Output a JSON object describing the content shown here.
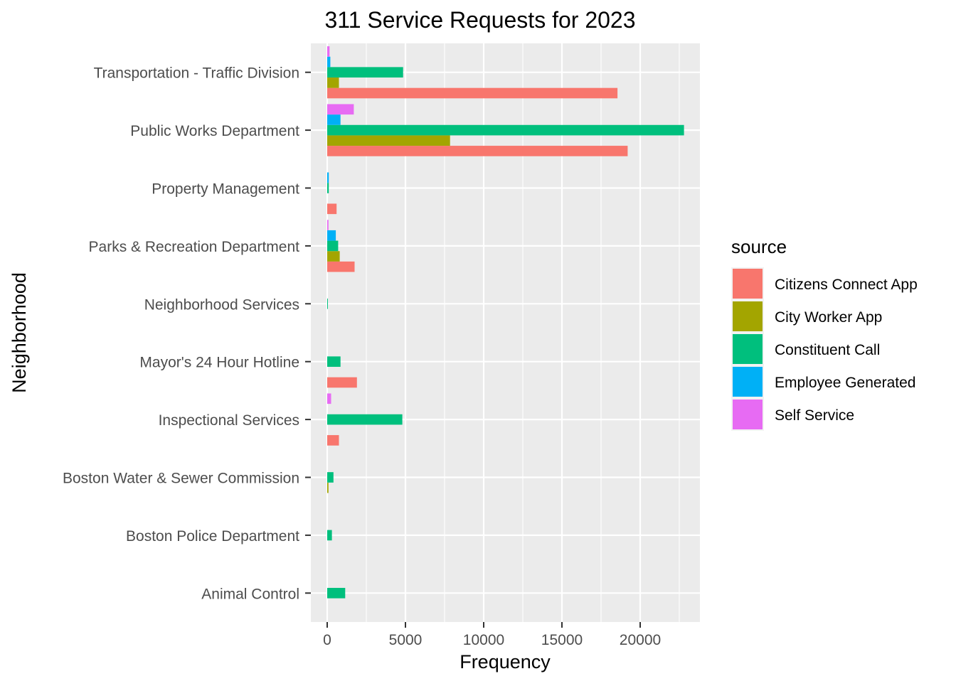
{
  "chart_data": {
    "type": "bar",
    "orientation": "horizontal",
    "title": "311 Service Requests for 2023",
    "xlabel": "Frequency",
    "ylabel": "Neighborhood",
    "xlim": [
      -1100,
      23800
    ],
    "xticks": [
      0,
      5000,
      10000,
      15000,
      20000
    ],
    "xtick_labels": [
      "0",
      "5000",
      "10000",
      "15000",
      "20000"
    ],
    "grid": true,
    "legend": {
      "title": "source",
      "position": "right"
    },
    "categories": [
      "Animal Control",
      "Boston Police Department",
      "Boston Water & Sewer Commission",
      "Inspectional Services",
      "Mayor's 24 Hour Hotline",
      "Neighborhood Services",
      "Parks & Recreation Department",
      "Property Management",
      "Public Works Department",
      "Transportation - Traffic Division"
    ],
    "series": [
      {
        "name": "Citizens Connect App",
        "color": "#F8766D",
        "values": [
          0,
          0,
          0,
          750,
          1900,
          0,
          1750,
          600,
          19200,
          18550
        ]
      },
      {
        "name": "City Worker App",
        "color": "#A3A500",
        "values": [
          0,
          0,
          80,
          0,
          0,
          0,
          800,
          0,
          7850,
          750
        ]
      },
      {
        "name": "Constituent Call",
        "color": "#00BF7D",
        "values": [
          1150,
          300,
          400,
          4800,
          850,
          20,
          700,
          100,
          22800,
          4850
        ]
      },
      {
        "name": "Employee Generated",
        "color": "#00B0F6",
        "values": [
          0,
          0,
          0,
          0,
          0,
          0,
          550,
          100,
          850,
          200
        ]
      },
      {
        "name": "Self Service",
        "color": "#E76BF3",
        "values": [
          0,
          0,
          0,
          250,
          0,
          0,
          80,
          0,
          1700,
          150
        ]
      }
    ]
  }
}
